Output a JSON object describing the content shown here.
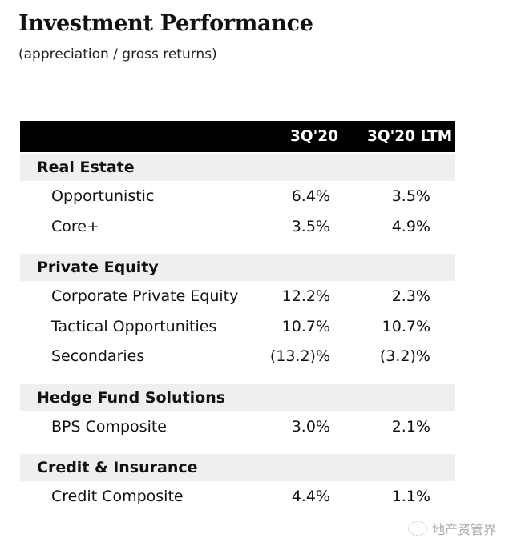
{
  "title": "Investment Performance",
  "subtitle": "(appreciation / gross returns)",
  "columns": [
    "3Q'20",
    "3Q'20 LTM"
  ],
  "groups": [
    {
      "name": "Real Estate",
      "rows": [
        {
          "label": "Opportunistic",
          "q": "6.4%",
          "ltm": "3.5%"
        },
        {
          "label": "Core+",
          "q": "3.5%",
          "ltm": "4.9%"
        }
      ]
    },
    {
      "name": "Private Equity",
      "rows": [
        {
          "label": "Corporate Private Equity",
          "q": "12.2%",
          "ltm": "2.3%"
        },
        {
          "label": "Tactical Opportunities",
          "q": "10.7%",
          "ltm": "10.7%"
        },
        {
          "label": "Secondaries",
          "q": "(13.2)%",
          "ltm": "(3.2)%"
        }
      ]
    },
    {
      "name": "Hedge Fund Solutions",
      "rows": [
        {
          "label": "BPS Composite",
          "q": "3.0%",
          "ltm": "2.1%"
        }
      ]
    },
    {
      "name": "Credit & Insurance",
      "rows": [
        {
          "label": "Credit Composite",
          "q": "4.4%",
          "ltm": "1.1%"
        }
      ]
    }
  ],
  "watermark": {
    "text": "地产资管界",
    "icon": "wechat-icon"
  }
}
